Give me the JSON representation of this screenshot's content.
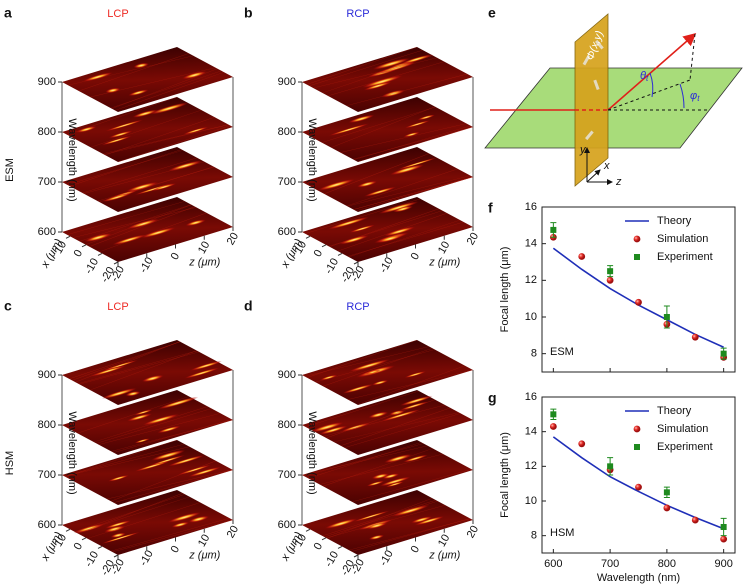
{
  "panels": [
    {
      "label": "a",
      "title": "LCP",
      "title_color": "#ee2a24"
    },
    {
      "label": "b",
      "title": "RCP",
      "title_color": "#2a2ad8"
    },
    {
      "label": "c",
      "title": "LCP",
      "title_color": "#ee2a24"
    },
    {
      "label": "d",
      "title": "RCP",
      "title_color": "#2a2ad8"
    }
  ],
  "row_labels": [
    "ESM",
    "HSM"
  ],
  "surface_axes": {
    "wavelength_label": "Wavelength (nm)",
    "wavelength_ticks": [
      600,
      700,
      800,
      900
    ],
    "wavelength_lim": [
      600,
      900
    ],
    "x_label": "x (μm)",
    "x_ticks": [
      10,
      0,
      -10,
      -20
    ],
    "x_lim": [
      15,
      -20
    ],
    "z_label": "z (μm)",
    "z_ticks": [
      -20,
      -10,
      0,
      10,
      20
    ],
    "z_lim": [
      -20,
      20
    ]
  },
  "diagram": {
    "label": "e",
    "phase": "Φ(x,y)",
    "theta": "θ",
    "phi": "φ",
    "angle_sub": "t",
    "axis_x": "x",
    "axis_y": "y",
    "axis_z": "z"
  },
  "chart_data": [
    {
      "type": "line",
      "label": "f",
      "annotation": "ESM",
      "ylabel": "Focal length (μm)",
      "xlim": [
        580,
        920
      ],
      "xticks": [
        600,
        700,
        800,
        900
      ],
      "show_xtick_labels": false,
      "ylim": [
        7,
        16
      ],
      "yticks": [
        8,
        10,
        12,
        14,
        16
      ],
      "legend": "upper right",
      "series": [
        {
          "name": "Theory",
          "style": "line",
          "color": "#1f2fb8",
          "x": [
            600,
            650,
            700,
            750,
            800,
            850,
            900
          ],
          "values": [
            13.75,
            12.6,
            11.55,
            10.65,
            9.85,
            9.05,
            8.35
          ]
        },
        {
          "name": "Simulation",
          "style": "dots",
          "color": "#e8302a",
          "x": [
            600,
            650,
            700,
            750,
            800,
            850,
            900
          ],
          "values": [
            14.35,
            13.3,
            12.0,
            10.8,
            9.6,
            8.9,
            7.8
          ]
        },
        {
          "name": "Experiment",
          "style": "squares",
          "color": "#1e8a1e",
          "x": [
            600,
            700,
            800,
            900
          ],
          "values": [
            14.75,
            12.5,
            10.0,
            8.0
          ],
          "errors": [
            0.4,
            0.3,
            0.6,
            0.3
          ]
        }
      ]
    },
    {
      "type": "line",
      "label": "g",
      "annotation": "HSM",
      "ylabel": "Focal length (μm)",
      "xlabel": "Wavelength (nm)",
      "xlim": [
        580,
        920
      ],
      "xticks": [
        600,
        700,
        800,
        900
      ],
      "show_xtick_labels": true,
      "ylim": [
        7,
        16
      ],
      "yticks": [
        8,
        10,
        12,
        14,
        16
      ],
      "legend": "upper right",
      "series": [
        {
          "name": "Theory",
          "style": "line",
          "color": "#1f2fb8",
          "x": [
            600,
            650,
            700,
            750,
            800,
            850,
            900
          ],
          "values": [
            13.7,
            12.5,
            11.4,
            10.55,
            9.75,
            9.05,
            8.4
          ]
        },
        {
          "name": "Simulation",
          "style": "dots",
          "color": "#e8302a",
          "x": [
            600,
            650,
            700,
            750,
            800,
            850,
            900
          ],
          "values": [
            14.3,
            13.3,
            11.8,
            10.8,
            9.6,
            8.9,
            7.8
          ]
        },
        {
          "name": "Experiment",
          "style": "squares",
          "color": "#1e8a1e",
          "x": [
            600,
            700,
            800,
            900
          ],
          "values": [
            15.0,
            12.0,
            10.5,
            8.5
          ],
          "errors": [
            0.3,
            0.5,
            0.3,
            0.5
          ]
        }
      ]
    }
  ]
}
